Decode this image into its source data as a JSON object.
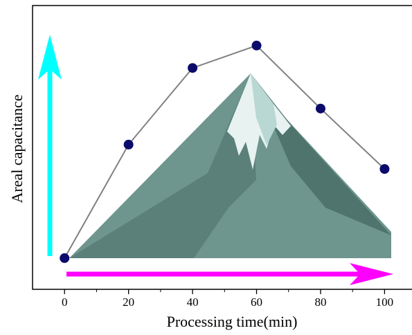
{
  "chart_data": {
    "type": "line",
    "x_label": "Processing time(min)",
    "y_label": "Areal capacitance",
    "x": [
      0,
      20,
      40,
      60,
      80,
      100
    ],
    "series": [
      {
        "color": "#0b0b6b",
        "line_color": "#808080",
        "values": [
          11.0,
          51.0,
          78.0,
          85.9,
          63.7,
          42.4
        ]
      }
    ],
    "xlim": [
      -10,
      109
    ],
    "ylim": [
      0,
      100
    ],
    "xticks": [
      0,
      20,
      40,
      60,
      80,
      100
    ]
  }
}
